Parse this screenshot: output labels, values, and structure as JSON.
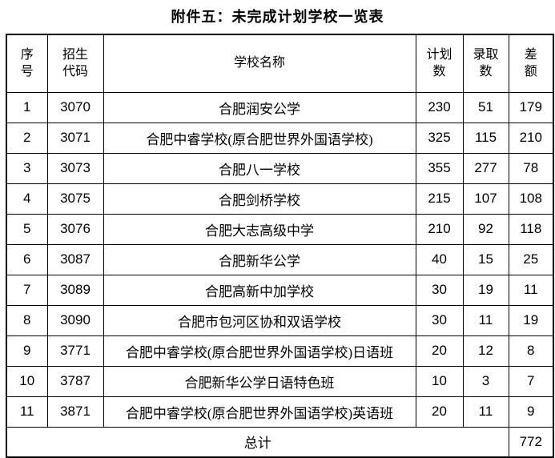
{
  "page": {
    "title": "附件五：未完成计划学校一览表"
  },
  "table": {
    "headers": {
      "no": "序\n号",
      "code": "招生\n代码",
      "school": "学校名称",
      "plan": "计划\n数",
      "admitted": "录取\n数",
      "diff": "差\n额"
    },
    "rows": [
      {
        "no": "1",
        "code": "3070",
        "school": "合肥润安公学",
        "plan": "230",
        "admitted": "51",
        "diff": "179"
      },
      {
        "no": "2",
        "code": "3071",
        "school": "合肥中睿学校(原合肥世界外国语学校)",
        "plan": "325",
        "admitted": "115",
        "diff": "210"
      },
      {
        "no": "3",
        "code": "3073",
        "school": "合肥八一学校",
        "plan": "355",
        "admitted": "277",
        "diff": "78"
      },
      {
        "no": "4",
        "code": "3075",
        "school": "合肥剑桥学校",
        "plan": "215",
        "admitted": "107",
        "diff": "108"
      },
      {
        "no": "5",
        "code": "3076",
        "school": "合肥大志高级中学",
        "plan": "210",
        "admitted": "92",
        "diff": "118"
      },
      {
        "no": "6",
        "code": "3087",
        "school": "合肥新华公学",
        "plan": "40",
        "admitted": "15",
        "diff": "25"
      },
      {
        "no": "7",
        "code": "3089",
        "school": "合肥高新中加学校",
        "plan": "30",
        "admitted": "19",
        "diff": "11"
      },
      {
        "no": "8",
        "code": "3090",
        "school": "合肥市包河区协和双语学校",
        "plan": "30",
        "admitted": "11",
        "diff": "19"
      },
      {
        "no": "9",
        "code": "3771",
        "school": "合肥中睿学校(原合肥世界外国语学校)日语班",
        "plan": "20",
        "admitted": "12",
        "diff": "8"
      },
      {
        "no": "10",
        "code": "3787",
        "school": "合肥新华公学日语特色班",
        "plan": "10",
        "admitted": "3",
        "diff": "7"
      },
      {
        "no": "11",
        "code": "3871",
        "school": "合肥中睿学校(原合肥世界外国语学校)英语班",
        "plan": "20",
        "admitted": "11",
        "diff": "9"
      }
    ],
    "total": {
      "label": "总计",
      "diff": "772"
    }
  }
}
